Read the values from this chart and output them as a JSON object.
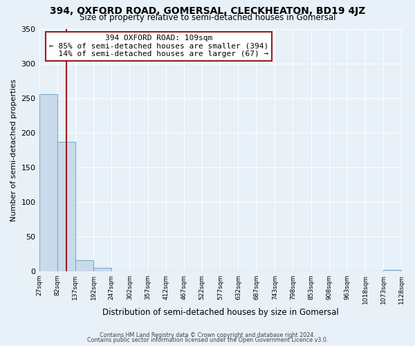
{
  "title": "394, OXFORD ROAD, GOMERSAL, CLECKHEATON, BD19 4JZ",
  "subtitle": "Size of property relative to semi-detached houses in Gomersal",
  "xlabel": "Distribution of semi-detached houses by size in Gomersal",
  "ylabel": "Number of semi-detached properties",
  "bin_edges": [
    27,
    82,
    137,
    192,
    247,
    302,
    357,
    412,
    467,
    522,
    577,
    632,
    687,
    743,
    798,
    853,
    908,
    963,
    1018,
    1073,
    1128
  ],
  "bin_counts": [
    256,
    187,
    16,
    5,
    0,
    0,
    0,
    0,
    0,
    0,
    0,
    0,
    0,
    0,
    0,
    0,
    0,
    0,
    0,
    2
  ],
  "property_size": 109,
  "pct_smaller": 85,
  "count_smaller": 394,
  "pct_larger": 14,
  "count_larger": 67,
  "bar_color": "#c9daea",
  "bar_edge_color": "#7aaed0",
  "vline_color": "#9b1c1c",
  "annotation_box_edge": "#9b1c1c",
  "ylim": [
    0,
    350
  ],
  "yticks": [
    0,
    50,
    100,
    150,
    200,
    250,
    300,
    350
  ],
  "background_color": "#e8f0f8",
  "grid_color": "#ffffff",
  "footer_line1": "Contains HM Land Registry data © Crown copyright and database right 2024.",
  "footer_line2": "Contains public sector information licensed under the Open Government Licence v3.0."
}
